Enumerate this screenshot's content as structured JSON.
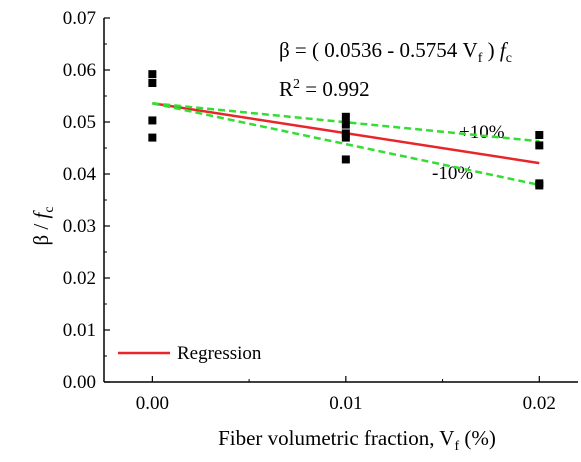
{
  "chart_data": {
    "type": "scatter",
    "title": "",
    "xlabel": "Fiber volumetric fraction, V",
    "xlabel_sub": "f",
    "xlabel_tail": " (%)",
    "ylabel": "β / ",
    "ylabel_italic": "f",
    "ylabel_sub": "c",
    "xlim": [
      -0.0025,
      0.022
    ],
    "ylim": [
      0,
      0.07
    ],
    "xticks": [
      0.0,
      0.01,
      0.02
    ],
    "xtick_labels": [
      "0.00",
      "0.01",
      "0.02"
    ],
    "yticks": [
      0,
      0.01,
      0.02,
      0.03,
      0.04,
      0.05,
      0.06,
      0.07
    ],
    "ytick_labels": [
      "0.00",
      "0.01",
      "0.02",
      "0.03",
      "0.04",
      "0.05",
      "0.06",
      "0.07"
    ],
    "grid": false,
    "legend_position": "bottom-left",
    "colors": {
      "regression": "#e8262a",
      "bounds": "#33dd33",
      "points": "#000000"
    },
    "points": [
      {
        "x": 0.0,
        "y": 0.0592
      },
      {
        "x": 0.0,
        "y": 0.0575
      },
      {
        "x": 0.0,
        "y": 0.0503
      },
      {
        "x": 0.0,
        "y": 0.047
      },
      {
        "x": 0.01,
        "y": 0.051
      },
      {
        "x": 0.01,
        "y": 0.0495
      },
      {
        "x": 0.01,
        "y": 0.0478
      },
      {
        "x": 0.01,
        "y": 0.047
      },
      {
        "x": 0.01,
        "y": 0.0428
      },
      {
        "x": 0.02,
        "y": 0.0475
      },
      {
        "x": 0.02,
        "y": 0.0455
      },
      {
        "x": 0.02,
        "y": 0.0382
      },
      {
        "x": 0.02,
        "y": 0.0378
      }
    ],
    "series": [
      {
        "name": "Regression",
        "style": "solid",
        "x": [
          0.0,
          0.02
        ],
        "y": [
          0.0536,
          0.0421
        ]
      },
      {
        "style": "dashed",
        "x": [
          0.0,
          0.02
        ],
        "y": [
          0.0536,
          0.0463
        ]
      },
      {
        "style": "dashed",
        "x": [
          0.0,
          0.02
        ],
        "y": [
          0.0536,
          0.0379
        ]
      }
    ],
    "annotations": {
      "equation_prefix": "β = ( 0.0536 - 0.5754 V",
      "equation_sub": "f",
      "equation_mid": " ) ",
      "equation_italic": "f",
      "equation_sub2": "c",
      "r2_prefix": "R",
      "r2_sup": "2",
      "r2_value": " = 0.992",
      "upper_label": "+10%",
      "lower_label": "-10%"
    },
    "legend": {
      "label": "Regression"
    }
  }
}
